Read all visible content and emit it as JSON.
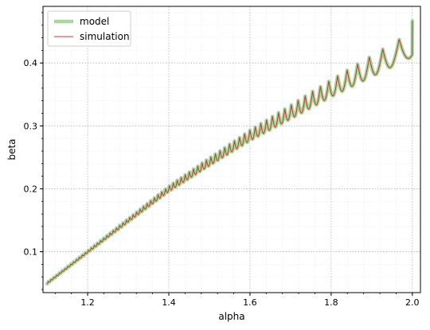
{
  "chart_data": {
    "type": "line",
    "title": "",
    "xlabel": "alpha",
    "ylabel": "beta",
    "xlim": [
      1.09,
      2.02
    ],
    "ylim": [
      0.035,
      0.49
    ],
    "xticks": [
      1.2,
      1.4,
      1.6,
      1.8,
      2.0
    ],
    "xtick_labels": [
      "1.2",
      "1.4",
      "1.6",
      "1.8",
      "2.0"
    ],
    "yticks": [
      0.1,
      0.2,
      0.3,
      0.4
    ],
    "ytick_labels": [
      "0.1",
      "0.2",
      "0.3",
      "0.4"
    ],
    "grid": true,
    "grid_minor": true,
    "legend_position": "top-left",
    "x_range": [
      1.1,
      2.0
    ],
    "trend": {
      "points": [
        {
          "x": 1.1,
          "y": 0.05
        },
        {
          "x": 1.2,
          "y": 0.1
        },
        {
          "x": 1.3,
          "y": 0.15
        },
        {
          "x": 1.4,
          "y": 0.2
        },
        {
          "x": 1.5,
          "y": 0.243
        },
        {
          "x": 1.6,
          "y": 0.285
        },
        {
          "x": 1.7,
          "y": 0.322
        },
        {
          "x": 1.8,
          "y": 0.36
        },
        {
          "x": 1.9,
          "y": 0.395
        },
        {
          "x": 2.0,
          "y": 0.43
        }
      ]
    },
    "oscillation": {
      "cycles_per_unit_x_start": 150,
      "cycles_per_unit_x_end": 17,
      "amplitude_start": 0.002,
      "amplitude_end": 0.04,
      "final_value": 0.467
    },
    "series": [
      {
        "name": "model",
        "color": "#a8d8a0",
        "style": "thick"
      },
      {
        "name": "simulation",
        "color": "#c0392b",
        "style": "thin"
      }
    ]
  }
}
